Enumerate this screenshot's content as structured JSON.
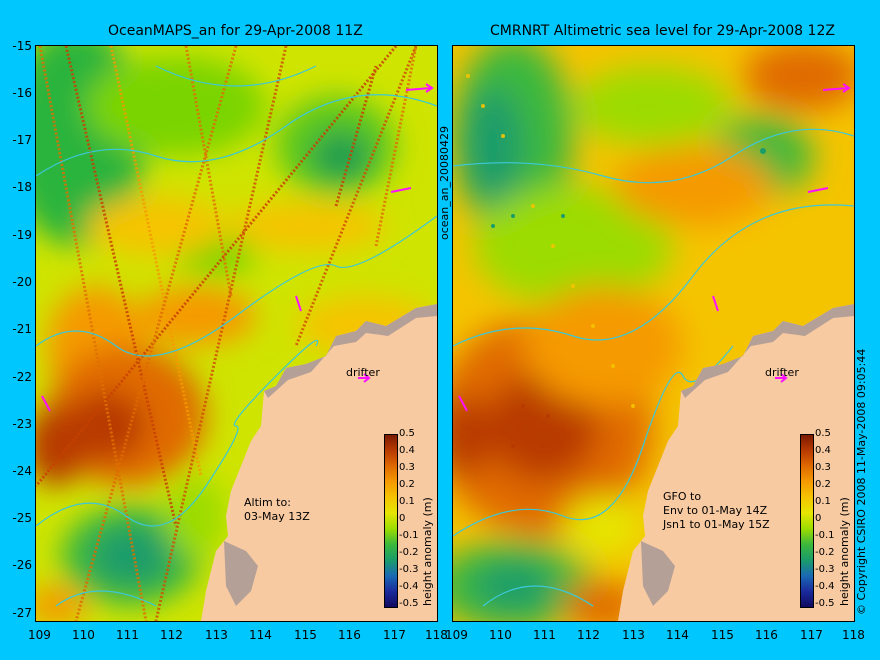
{
  "left_panel": {
    "title": "OceanMAPS_an for 29-Apr-2008 11Z",
    "annotation_line1": "Altim to:",
    "annotation_line2": "03-May 13Z",
    "drifter_label": "drifter"
  },
  "right_panel": {
    "title": "CMRNRT Altimetric sea level  for 29-Apr-2008 12Z",
    "annotation_line1": "GFO to",
    "annotation_line2": "Env to 01-May 14Z",
    "annotation_line3": "Jsn1 to 01-May 15Z",
    "drifter_label": "drifter"
  },
  "side_label_middle": "ocean_an_20080429",
  "side_label_right": "© Copyright CSIRO 2008  11-May-2008 09:05:44",
  "x_ticks": [
    "109",
    "110",
    "111",
    "112",
    "113",
    "114",
    "115",
    "116",
    "117",
    "118"
  ],
  "y_ticks": [
    "-15",
    "-16",
    "-17",
    "-18",
    "-19",
    "-20",
    "-21",
    "-22",
    "-23",
    "-24",
    "-25",
    "-26",
    "-27"
  ],
  "colorbar": {
    "label": "height anomaly (m)",
    "ticks": [
      "0.5",
      "0.4",
      "0.3",
      "0.2",
      "0.1",
      "0",
      "-0.1",
      "-0.2",
      "-0.3",
      "-0.4",
      "-0.5"
    ],
    "colors": [
      "#7a1a00",
      "#b83a00",
      "#e06a00",
      "#f59a00",
      "#f5c400",
      "#e6e600",
      "#9cdc00",
      "#3cb83c",
      "#1a9c6a",
      "#1a6ab4",
      "#1a2a9c",
      "#100a60"
    ]
  },
  "colors": {
    "background": "#00c8ff",
    "land": "#f8caa2",
    "coast_gray": "#b4a096",
    "isobath": "#3cc8d8",
    "drifter": "#ff10ff"
  }
}
